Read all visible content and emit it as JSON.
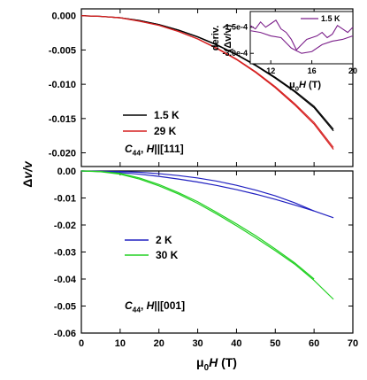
{
  "chart_data": [
    {
      "type": "line",
      "panel": "top",
      "xlim": [
        0,
        70
      ],
      "ylim": [
        -0.022,
        0.001
      ],
      "yticks": [
        "0.000",
        "-0.005",
        "-0.010",
        "-0.015",
        "-0.020"
      ],
      "ytick_values": [
        0,
        -0.005,
        -0.01,
        -0.015,
        -0.02
      ],
      "grid": false,
      "legend_position": "left",
      "annotation": {
        "main": "C",
        "sub": "44",
        "rest": ", H||[111]"
      },
      "series": [
        {
          "name": "1.5 K",
          "color": "#000000",
          "x": [
            0,
            5,
            10,
            15,
            20,
            25,
            30,
            35,
            40,
            45,
            50,
            55,
            60,
            65
          ],
          "y": [
            0,
            -0.0001,
            -0.0003,
            -0.0007,
            -0.0013,
            -0.0021,
            -0.0031,
            -0.0043,
            -0.0057,
            -0.0073,
            -0.0091,
            -0.0111,
            -0.0134,
            -0.0168
          ]
        },
        {
          "name": "29 K",
          "color": "#d62020",
          "x": [
            0,
            5,
            10,
            15,
            20,
            25,
            30,
            35,
            40,
            45,
            50,
            55,
            60,
            65
          ],
          "y": [
            0,
            -0.0001,
            -0.0003,
            -0.0008,
            -0.0014,
            -0.0023,
            -0.0034,
            -0.0048,
            -0.0064,
            -0.0083,
            -0.0105,
            -0.013,
            -0.0158,
            -0.0195
          ]
        }
      ]
    },
    {
      "type": "line",
      "panel": "inset",
      "xlim": [
        10,
        20
      ],
      "ylim": [
        -0.00036,
        -6e-05
      ],
      "xticks": [
        "12",
        "16",
        "20"
      ],
      "xtick_values": [
        12,
        16,
        20
      ],
      "yticks": [
        "-1.5e-4",
        "-3.0e-4"
      ],
      "ytick_values": [
        -0.00015,
        -0.0003
      ],
      "ylabel": "deriv. (Δv/v)",
      "series": [
        {
          "name": "1.5 K",
          "color": "#7b1f8a",
          "x": [
            10,
            10.5,
            11,
            11.5,
            12,
            12.5,
            13,
            13.5,
            14,
            14.5,
            15,
            15.5,
            16,
            16.5,
            17,
            17.5,
            18,
            18.5,
            19,
            19.5,
            20
          ],
          "y": [
            -0.00014,
            -0.00016,
            -0.00012,
            -0.00015,
            -0.00013,
            -0.00011,
            -0.00016,
            -0.00018,
            -0.00022,
            -0.00028,
            -0.00025,
            -0.00022,
            -0.00021,
            -0.0002,
            -0.00018,
            -0.00021,
            -0.00019,
            -0.00014,
            -0.00016,
            -0.00018,
            -0.00015
          ]
        },
        {
          "name": "",
          "color": "#7b1f8a",
          "x": [
            10,
            11,
            12,
            13,
            14,
            15,
            16,
            17,
            18,
            19,
            20
          ],
          "y": [
            -0.00017,
            -0.00018,
            -0.0002,
            -0.00021,
            -0.00027,
            -0.0003,
            -0.00029,
            -0.00025,
            -0.00023,
            -0.00022,
            -0.0002
          ]
        }
      ],
      "xlabel": {
        "main": "μ",
        "sub": "0",
        "italic": "H",
        "rest": " (T)"
      }
    },
    {
      "type": "line",
      "panel": "bottom",
      "xlim": [
        0,
        70
      ],
      "ylim": [
        -0.06,
        0.0
      ],
      "yticks": [
        "0.00",
        "-0.01",
        "-0.02",
        "-0.03",
        "-0.04",
        "-0.05",
        "-0.06"
      ],
      "ytick_values": [
        0,
        -0.01,
        -0.02,
        -0.03,
        -0.04,
        -0.05,
        -0.06
      ],
      "xticks": [
        "0",
        "10",
        "20",
        "30",
        "40",
        "50",
        "60",
        "70"
      ],
      "xtick_values": [
        0,
        10,
        20,
        30,
        40,
        50,
        60,
        70
      ],
      "grid": false,
      "legend_position": "left",
      "annotation": {
        "main": "C",
        "sub": "44",
        "rest": ", H||[001]"
      },
      "series": [
        {
          "name": "2 K",
          "color": "#2020c0",
          "x": [
            0,
            5,
            10,
            15,
            20,
            25,
            30,
            35,
            40,
            45,
            50,
            55,
            60,
            65
          ],
          "y": [
            0,
            -0.0002,
            -0.0006,
            -0.0012,
            -0.002,
            -0.003,
            -0.0041,
            -0.0054,
            -0.0069,
            -0.0086,
            -0.0105,
            -0.0126,
            -0.0148,
            -0.0173
          ]
        },
        {
          "name": "",
          "color": "#2020c0",
          "x": [
            0,
            5,
            10,
            15,
            20,
            25,
            30,
            35,
            40,
            45,
            50,
            55,
            60
          ],
          "y": [
            0,
            -0.0001,
            -0.0002,
            -0.0005,
            -0.001,
            -0.0017,
            -0.0026,
            -0.0038,
            -0.0053,
            -0.0071,
            -0.0092,
            -0.0118,
            -0.0148
          ]
        },
        {
          "name": "30 K",
          "color": "#22d022",
          "x": [
            0,
            5,
            10,
            15,
            20,
            25,
            30,
            35,
            40,
            45,
            50,
            55,
            60,
            65
          ],
          "y": [
            0,
            -0.0003,
            -0.0012,
            -0.003,
            -0.0055,
            -0.0085,
            -0.012,
            -0.016,
            -0.0203,
            -0.0248,
            -0.0295,
            -0.0345,
            -0.0405,
            -0.0475
          ]
        },
        {
          "name": "",
          "color": "#22d022",
          "x": [
            0,
            5,
            10,
            15,
            20,
            25,
            30,
            35,
            40,
            45,
            50,
            55,
            60
          ],
          "y": [
            0,
            -0.0002,
            -0.0009,
            -0.0026,
            -0.005,
            -0.008,
            -0.0114,
            -0.0154,
            -0.0196,
            -0.024,
            -0.0289,
            -0.034,
            -0.04
          ]
        }
      ],
      "xlabel": {
        "main": "μ",
        "sub": "0",
        "italic": "H",
        "rest": " (T)"
      }
    }
  ],
  "shared_ylabel": "Δv/v"
}
